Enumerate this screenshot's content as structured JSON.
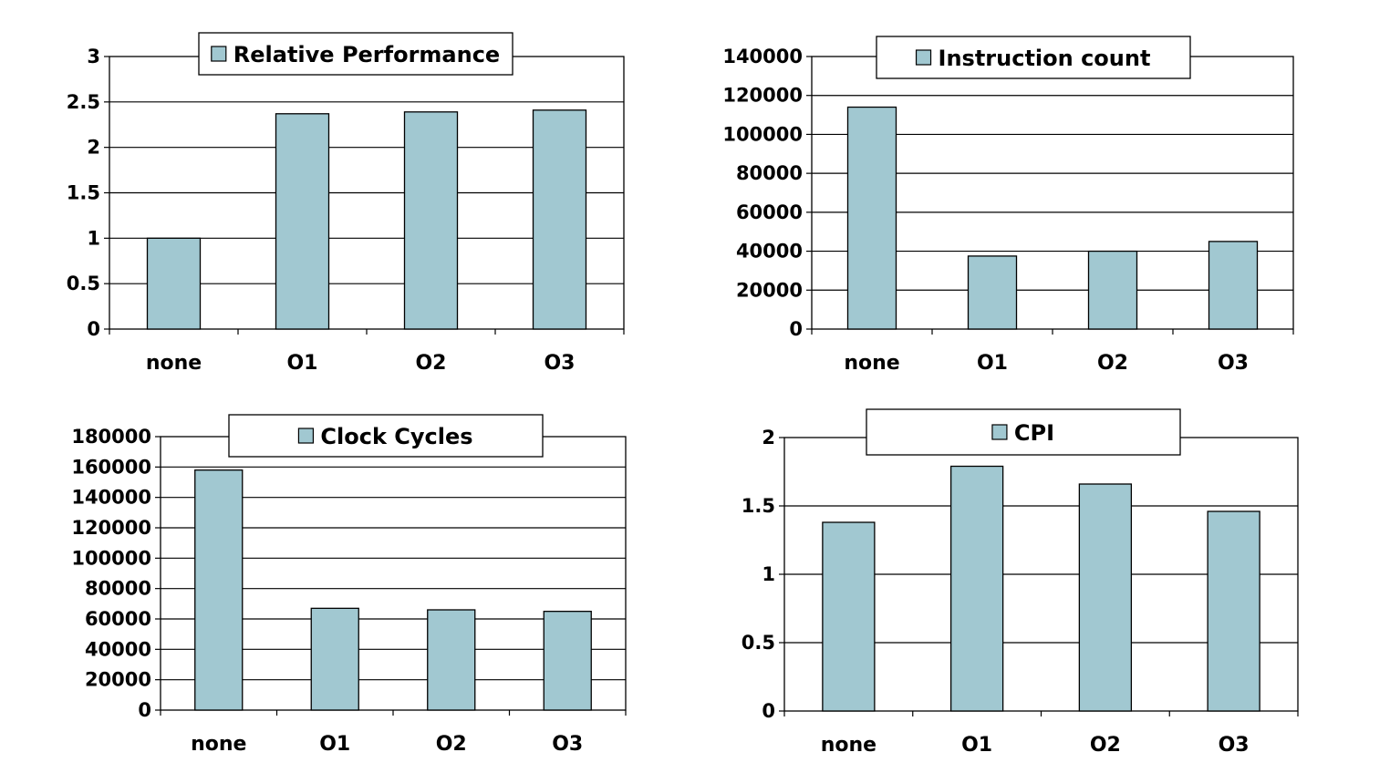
{
  "colors": {
    "bar_fill": "#a1c8d1",
    "bar_stroke": "#000000",
    "gridline": "#000000",
    "legend_border": "#000000"
  },
  "chart_data": [
    {
      "type": "bar",
      "legend": "Relative Performance",
      "legend_placement": "top",
      "categories": [
        "none",
        "O1",
        "O2",
        "O3"
      ],
      "series": [
        {
          "name": "Relative Performance",
          "values": [
            1,
            2.37,
            2.39,
            2.41
          ]
        }
      ],
      "ylim": [
        0,
        3
      ],
      "yticks": [
        0,
        0.5,
        1,
        1.5,
        2,
        2.5,
        3
      ],
      "ytick_labels": [
        "0",
        "0.5",
        "1",
        "1.5",
        "2",
        "2.5",
        "3"
      ],
      "grid": true
    },
    {
      "type": "bar",
      "legend": "Instruction count",
      "legend_placement": "top",
      "categories": [
        "none",
        "O1",
        "O2",
        "O3"
      ],
      "series": [
        {
          "name": "Instruction count",
          "values": [
            114000,
            37500,
            40000,
            45000
          ]
        }
      ],
      "ylim": [
        0,
        140000
      ],
      "yticks": [
        0,
        20000,
        40000,
        60000,
        80000,
        100000,
        120000,
        140000
      ],
      "ytick_labels": [
        "0",
        "20000",
        "40000",
        "60000",
        "80000",
        "100000",
        "120000",
        "140000"
      ],
      "grid": true
    },
    {
      "type": "bar",
      "legend": "Clock Cycles",
      "legend_placement": "top",
      "categories": [
        "none",
        "O1",
        "O2",
        "O3"
      ],
      "series": [
        {
          "name": "Clock Cycles",
          "values": [
            158000,
            67000,
            66000,
            65000
          ]
        }
      ],
      "ylim": [
        0,
        180000
      ],
      "yticks": [
        0,
        20000,
        40000,
        60000,
        80000,
        100000,
        120000,
        140000,
        160000,
        180000
      ],
      "ytick_labels": [
        "0",
        "20000",
        "40000",
        "60000",
        "80000",
        "100000",
        "120000",
        "140000",
        "160000",
        "180000"
      ],
      "grid": true
    },
    {
      "type": "bar",
      "legend": "CPI",
      "legend_placement": "top",
      "categories": [
        "none",
        "O1",
        "O2",
        "O3"
      ],
      "series": [
        {
          "name": "CPI",
          "values": [
            1.38,
            1.79,
            1.66,
            1.46
          ]
        }
      ],
      "ylim": [
        0,
        2
      ],
      "yticks": [
        0,
        0.5,
        1,
        1.5,
        2
      ],
      "ytick_labels": [
        "0",
        "0.5",
        "1",
        "1.5",
        "2"
      ],
      "grid": true
    }
  ]
}
